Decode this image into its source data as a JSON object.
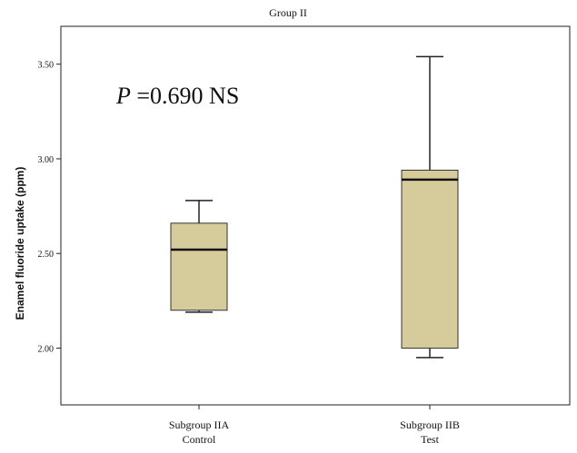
{
  "chart_data": {
    "type": "box",
    "title": "Group II",
    "ylabel": "Enamel fluoride uptake (ppm)",
    "xlabel": "",
    "ylim": [
      1.7,
      3.7
    ],
    "yticks": [
      2.0,
      2.5,
      3.0,
      3.5
    ],
    "ytick_labels": [
      "2.00",
      "2.50",
      "3.00",
      "3.50"
    ],
    "categories": [
      {
        "line1": "Subgroup IIA",
        "line2": "Control"
      },
      {
        "line1": "Subgroup IIB",
        "line2": "Test"
      }
    ],
    "boxes": [
      {
        "min": 2.19,
        "q1": 2.2,
        "median": 2.52,
        "q3": 2.66,
        "max": 2.78
      },
      {
        "min": 1.95,
        "q1": 2.0,
        "median": 2.89,
        "q3": 2.94,
        "max": 3.54
      }
    ],
    "annotation": {
      "italic": "P",
      "text": " =0.690 NS"
    },
    "box_color": "#d6cb9a",
    "grid": false
  }
}
